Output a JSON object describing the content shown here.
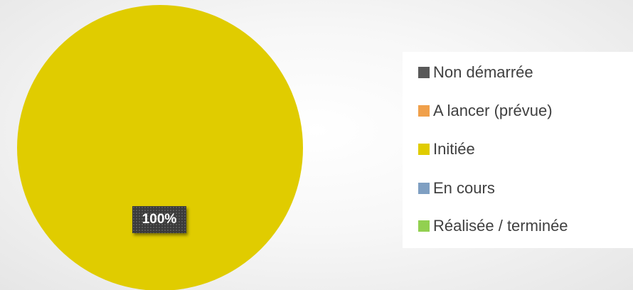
{
  "chart_data": {
    "type": "pie",
    "title": "",
    "categories": [
      "Non démarrée",
      "A lancer (prévue)",
      "Initiée",
      "En cours",
      "Réalisée / terminée"
    ],
    "values": [
      0,
      0,
      100,
      0,
      0
    ],
    "colors": [
      "#595959",
      "#f0a04b",
      "#e0cc00",
      "#7f9fc2",
      "#92d050"
    ],
    "data_labels": [
      "",
      "",
      "100%",
      "",
      ""
    ],
    "legend_position": "right"
  }
}
